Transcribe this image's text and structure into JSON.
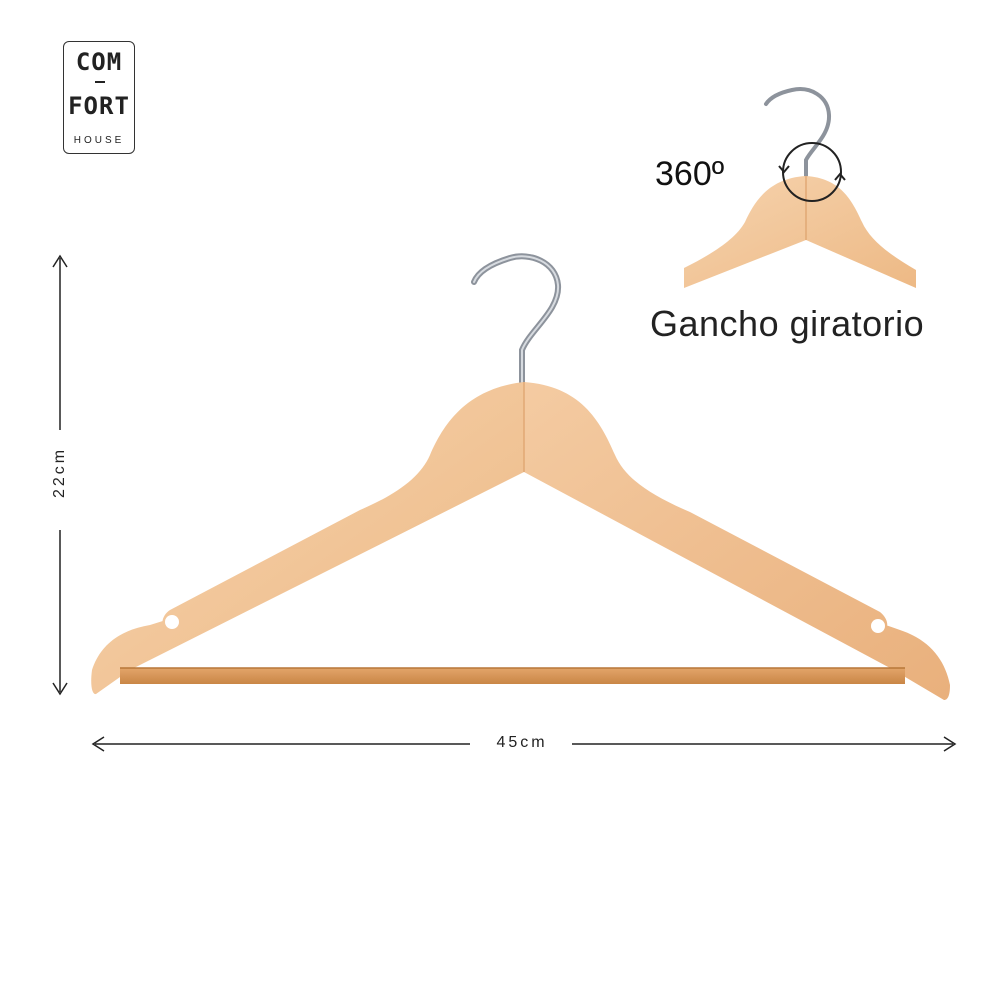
{
  "logo": {
    "line1": "COM",
    "line2": "FORT",
    "line3": "HOUSE"
  },
  "dimensions": {
    "height": "22cm",
    "width": "45cm"
  },
  "rotation": {
    "degrees": "360º",
    "caption": "Gancho giratorio"
  },
  "colors": {
    "wood_light": "#f3c9a0",
    "wood_mid": "#e8ad7d",
    "bar": "#d99a5b",
    "hook": "#8a8f99",
    "ink": "#222222"
  }
}
